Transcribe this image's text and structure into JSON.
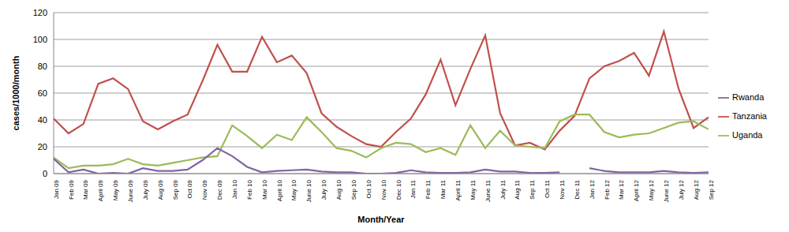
{
  "chart_data": {
    "type": "line",
    "x_label": "Month/Year",
    "y_label": "cases/1000/month",
    "categories": [
      "Jan 09",
      "Feb 09",
      "Mar 09",
      "April 09",
      "May 09",
      "June 09",
      "July 09",
      "Aug 09",
      "Sep 09",
      "Oct 09",
      "Nov 09",
      "Dec 09",
      "Jan 10",
      "Feb 10",
      "Mar 10",
      "April 10",
      "May 10",
      "June 10",
      "July 10",
      "Aug 10",
      "Sep 10",
      "Oct 10",
      "Nov 10",
      "Dec 10",
      "Jan 11",
      "Feb 11",
      "Mar 11",
      "April 11",
      "May 11",
      "June 11",
      "July 11",
      "Aug 11",
      "Sep 11",
      "Oct 11",
      "Nov 11",
      "Dec 11",
      "Jan 12",
      "Feb 12",
      "Mar 12",
      "April 12",
      "May 12",
      "June 12",
      "July 12",
      "Aug 12",
      "Sep 12"
    ],
    "series": [
      {
        "name": "Tanzania",
        "color": "#c0504d",
        "values": [
          41,
          30,
          37,
          67,
          71,
          63,
          39,
          33,
          39,
          44,
          69,
          96,
          76,
          76,
          102,
          83,
          88,
          75,
          45,
          35,
          28,
          22,
          20,
          31,
          41,
          59,
          85,
          51,
          78,
          103,
          45,
          21,
          23,
          18,
          32,
          43,
          71,
          80,
          84,
          90,
          73,
          106,
          63,
          34,
          42
        ]
      },
      {
        "name": "Uganda",
        "color": "#9bbb59",
        "values": [
          12,
          4,
          6,
          6,
          7,
          11,
          7,
          6,
          8,
          10,
          12,
          13,
          36,
          28,
          19,
          29,
          25,
          42,
          31,
          19,
          17,
          12,
          19,
          23,
          22,
          16,
          19,
          14,
          36,
          19,
          32,
          21,
          20,
          19,
          39,
          44,
          44,
          31,
          27,
          29,
          30,
          34,
          38,
          39,
          33
        ]
      },
      {
        "name": "Rwanda",
        "color": "#8064a2",
        "values": [
          11,
          1,
          3,
          0,
          0.5,
          0,
          4,
          2,
          2,
          3,
          10,
          19,
          13,
          5,
          1,
          2,
          2.5,
          3,
          1.5,
          1,
          1,
          0,
          0,
          0.5,
          2.5,
          1,
          0.5,
          0.5,
          1,
          3,
          1.5,
          1.5,
          0.5,
          0.5,
          1,
          null,
          4,
          2,
          1,
          1,
          1,
          2,
          1,
          0.5,
          1
        ]
      }
    ],
    "ylim": [
      0,
      120
    ],
    "yticks": [
      0,
      20,
      40,
      60,
      80,
      100,
      120
    ],
    "grid": true,
    "legend": "right"
  }
}
